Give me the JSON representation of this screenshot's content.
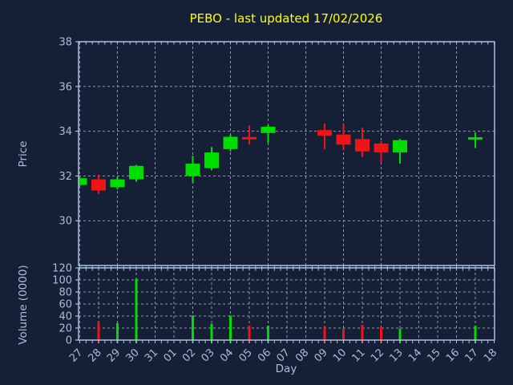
{
  "title": "PEBO - last updated 17/02/2026",
  "axes": {
    "price_label": "Price",
    "volume_label": "Volume (0000)",
    "x_label": "Day"
  },
  "colors": {
    "background": "#152036",
    "axis": "#a5c1e0",
    "text": "#a9bdd9",
    "grid": "#8f99a8",
    "title": "#ffff00",
    "up": "#00dd00",
    "down": "#ed1515"
  },
  "chart_data": {
    "type": "candlestick",
    "title": "PEBO - last updated 17/02/2026",
    "x_label": "Day",
    "x_categories": [
      "27",
      "28",
      "29",
      "30",
      "31",
      "01",
      "02",
      "03",
      "04",
      "05",
      "06",
      "07",
      "08",
      "09",
      "10",
      "11",
      "12",
      "13",
      "14",
      "15",
      "16",
      "17",
      "18"
    ],
    "price_axis": {
      "label": "Price",
      "ticks": [
        38,
        36,
        34,
        32,
        30
      ],
      "range": [
        28,
        38
      ],
      "grid": "dashed"
    },
    "volume_axis": {
      "label": "Volume (0000)",
      "ticks": [
        120,
        100,
        80,
        60,
        40,
        20,
        0
      ],
      "range": [
        0,
        120
      ],
      "grid": "dashed"
    },
    "up_color": "#00dd00",
    "down_color": "#ed1515",
    "legend": "none",
    "series": [
      {
        "day": "27",
        "open": 31.6,
        "high": 31.95,
        "low": 31.55,
        "close": 31.9,
        "volume": 0
      },
      {
        "day": "28",
        "open": 31.85,
        "high": 32.05,
        "low": 31.2,
        "close": 31.35,
        "volume": 30
      },
      {
        "day": "29",
        "open": 31.5,
        "high": 31.95,
        "low": 31.4,
        "close": 31.85,
        "volume": 28
      },
      {
        "day": "30",
        "open": 31.85,
        "high": 32.5,
        "low": 31.75,
        "close": 32.45,
        "volume": 102
      },
      {
        "day": "02",
        "open": 32.0,
        "high": 32.9,
        "low": 31.7,
        "close": 32.55,
        "volume": 41
      },
      {
        "day": "03",
        "open": 32.35,
        "high": 33.3,
        "low": 32.25,
        "close": 33.05,
        "volume": 27
      },
      {
        "day": "04",
        "open": 33.2,
        "high": 33.85,
        "low": 33.1,
        "close": 33.75,
        "volume": 41
      },
      {
        "day": "05",
        "open": 33.74,
        "high": 34.25,
        "low": 33.4,
        "close": 33.69,
        "volume": 24
      },
      {
        "day": "06",
        "open": 33.92,
        "high": 34.27,
        "low": 33.48,
        "close": 34.2,
        "volume": 24
      },
      {
        "day": "09",
        "open": 34.05,
        "high": 34.35,
        "low": 33.2,
        "close": 33.8,
        "volume": 22
      },
      {
        "day": "10",
        "open": 33.85,
        "high": 34.3,
        "low": 33.15,
        "close": 33.4,
        "volume": 20
      },
      {
        "day": "11",
        "open": 33.65,
        "high": 34.15,
        "low": 32.85,
        "close": 33.1,
        "volume": 25
      },
      {
        "day": "12",
        "open": 33.45,
        "high": 33.55,
        "low": 32.6,
        "close": 33.05,
        "volume": 22
      },
      {
        "day": "13",
        "open": 33.05,
        "high": 33.65,
        "low": 32.55,
        "close": 33.6,
        "volume": 19
      },
      {
        "day": "17",
        "open": 33.68,
        "high": 33.95,
        "low": 33.25,
        "close": 33.73,
        "volume": 24
      }
    ]
  }
}
